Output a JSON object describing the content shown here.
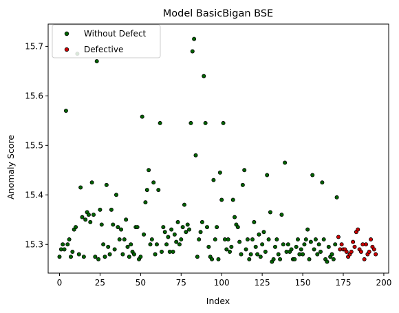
{
  "chart_data": {
    "type": "scatter",
    "title": "Model BasicBigan BSE",
    "xlabel": "Index",
    "ylabel": "Anomaly Score",
    "xlim": [
      -7,
      203
    ],
    "ylim": [
      15.242,
      15.745
    ],
    "xticks": [
      0,
      25,
      50,
      75,
      100,
      125,
      150,
      175,
      200
    ],
    "yticks": [
      15.3,
      15.4,
      15.5,
      15.6,
      15.7
    ],
    "legend_position": "top-left",
    "series": [
      {
        "name": "Without Defect",
        "color": "#006400",
        "points": [
          [
            0,
            15.275
          ],
          [
            1,
            15.29
          ],
          [
            2,
            15.3
          ],
          [
            3,
            15.29
          ],
          [
            4,
            15.57
          ],
          [
            5,
            15.3
          ],
          [
            6,
            15.31
          ],
          [
            7,
            15.275
          ],
          [
            8,
            15.285
          ],
          [
            9,
            15.33
          ],
          [
            10,
            15.335
          ],
          [
            11,
            15.685
          ],
          [
            12,
            15.28
          ],
          [
            13,
            15.415
          ],
          [
            14,
            15.355
          ],
          [
            15,
            15.275
          ],
          [
            16,
            15.35
          ],
          [
            17,
            15.365
          ],
          [
            18,
            15.36
          ],
          [
            19,
            15.345
          ],
          [
            20,
            15.425
          ],
          [
            21,
            15.36
          ],
          [
            22,
            15.275
          ],
          [
            23,
            15.67
          ],
          [
            24,
            15.27
          ],
          [
            25,
            15.37
          ],
          [
            26,
            15.34
          ],
          [
            27,
            15.3
          ],
          [
            28,
            15.275
          ],
          [
            29,
            15.42
          ],
          [
            30,
            15.295
          ],
          [
            31,
            15.28
          ],
          [
            32,
            15.37
          ],
          [
            33,
            15.34
          ],
          [
            34,
            15.29
          ],
          [
            35,
            15.4
          ],
          [
            36,
            15.335
          ],
          [
            37,
            15.31
          ],
          [
            38,
            15.33
          ],
          [
            39,
            15.28
          ],
          [
            40,
            15.31
          ],
          [
            41,
            15.35
          ],
          [
            42,
            15.295
          ],
          [
            43,
            15.275
          ],
          [
            44,
            15.3
          ],
          [
            45,
            15.285
          ],
          [
            46,
            15.28
          ],
          [
            47,
            15.335
          ],
          [
            48,
            15.335
          ],
          [
            49,
            15.27
          ],
          [
            50,
            15.275
          ],
          [
            51,
            15.558
          ],
          [
            52,
            15.32
          ],
          [
            53,
            15.385
          ],
          [
            54,
            15.41
          ],
          [
            55,
            15.45
          ],
          [
            56,
            15.3
          ],
          [
            57,
            15.31
          ],
          [
            58,
            15.425
          ],
          [
            59,
            15.28
          ],
          [
            60,
            15.3
          ],
          [
            61,
            15.41
          ],
          [
            62,
            15.545
          ],
          [
            63,
            15.285
          ],
          [
            64,
            15.335
          ],
          [
            65,
            15.325
          ],
          [
            66,
            15.3
          ],
          [
            67,
            15.315
          ],
          [
            68,
            15.285
          ],
          [
            69,
            15.33
          ],
          [
            70,
            15.285
          ],
          [
            71,
            15.32
          ],
          [
            72,
            15.305
          ],
          [
            73,
            15.345
          ],
          [
            74,
            15.3
          ],
          [
            75,
            15.31
          ],
          [
            76,
            15.335
          ],
          [
            77,
            15.38
          ],
          [
            78,
            15.325
          ],
          [
            79,
            15.34
          ],
          [
            80,
            15.33
          ],
          [
            81,
            15.545
          ],
          [
            82,
            15.69
          ],
          [
            83,
            15.715
          ],
          [
            84,
            15.48
          ],
          [
            85,
            15.275
          ],
          [
            86,
            15.31
          ],
          [
            87,
            15.325
          ],
          [
            88,
            15.345
          ],
          [
            89,
            15.64
          ],
          [
            90,
            15.545
          ],
          [
            91,
            15.335
          ],
          [
            92,
            15.295
          ],
          [
            93,
            15.275
          ],
          [
            94,
            15.27
          ],
          [
            95,
            15.43
          ],
          [
            96,
            15.31
          ],
          [
            97,
            15.335
          ],
          [
            98,
            15.27
          ],
          [
            99,
            15.445
          ],
          [
            100,
            15.39
          ],
          [
            101,
            15.545
          ],
          [
            102,
            15.31
          ],
          [
            103,
            15.29
          ],
          [
            104,
            15.31
          ],
          [
            105,
            15.285
          ],
          [
            106,
            15.295
          ],
          [
            107,
            15.39
          ],
          [
            108,
            15.355
          ],
          [
            109,
            15.34
          ],
          [
            110,
            15.335
          ],
          [
            111,
            15.305
          ],
          [
            112,
            15.28
          ],
          [
            113,
            15.42
          ],
          [
            114,
            15.45
          ],
          [
            115,
            15.29
          ],
          [
            116,
            15.31
          ],
          [
            117,
            15.27
          ],
          [
            118,
            15.28
          ],
          [
            119,
            15.31
          ],
          [
            120,
            15.345
          ],
          [
            121,
            15.295
          ],
          [
            122,
            15.28
          ],
          [
            123,
            15.32
          ],
          [
            124,
            15.275
          ],
          [
            125,
            15.3
          ],
          [
            126,
            15.325
          ],
          [
            127,
            15.285
          ],
          [
            128,
            15.44
          ],
          [
            129,
            15.31
          ],
          [
            130,
            15.365
          ],
          [
            131,
            15.265
          ],
          [
            132,
            15.27
          ],
          [
            133,
            15.295
          ],
          [
            134,
            15.31
          ],
          [
            135,
            15.28
          ],
          [
            136,
            15.27
          ],
          [
            137,
            15.36
          ],
          [
            138,
            15.3
          ],
          [
            139,
            15.465
          ],
          [
            140,
            15.285
          ],
          [
            141,
            15.3
          ],
          [
            142,
            15.285
          ],
          [
            143,
            15.29
          ],
          [
            144,
            15.27
          ],
          [
            145,
            15.27
          ],
          [
            146,
            15.295
          ],
          [
            147,
            15.31
          ],
          [
            148,
            15.28
          ],
          [
            149,
            15.29
          ],
          [
            150,
            15.28
          ],
          [
            151,
            15.3
          ],
          [
            152,
            15.31
          ],
          [
            153,
            15.33
          ],
          [
            154,
            15.27
          ],
          [
            155,
            15.305
          ],
          [
            156,
            15.44
          ],
          [
            157,
            15.29
          ],
          [
            158,
            15.31
          ],
          [
            159,
            15.28
          ],
          [
            160,
            15.3
          ],
          [
            161,
            15.285
          ],
          [
            162,
            15.425
          ],
          [
            163,
            15.31
          ],
          [
            164,
            15.27
          ],
          [
            165,
            15.265
          ],
          [
            166,
            15.295
          ],
          [
            167,
            15.275
          ],
          [
            168,
            15.28
          ],
          [
            169,
            15.27
          ],
          [
            170,
            15.3
          ],
          [
            171,
            15.395
          ]
        ]
      },
      {
        "name": "Defective",
        "color": "#cc0000",
        "points": [
          [
            172,
            15.315
          ],
          [
            173,
            15.29
          ],
          [
            174,
            15.3
          ],
          [
            175,
            15.29
          ],
          [
            176,
            15.29
          ],
          [
            177,
            15.285
          ],
          [
            178,
            15.275
          ],
          [
            179,
            15.28
          ],
          [
            180,
            15.285
          ],
          [
            181,
            15.305
          ],
          [
            182,
            15.295
          ],
          [
            183,
            15.325
          ],
          [
            184,
            15.33
          ],
          [
            185,
            15.29
          ],
          [
            186,
            15.285
          ],
          [
            187,
            15.3
          ],
          [
            188,
            15.27
          ],
          [
            189,
            15.3
          ],
          [
            190,
            15.28
          ],
          [
            191,
            15.285
          ],
          [
            192,
            15.31
          ],
          [
            193,
            15.295
          ],
          [
            194,
            15.29
          ],
          [
            195,
            15.28
          ]
        ]
      }
    ]
  }
}
